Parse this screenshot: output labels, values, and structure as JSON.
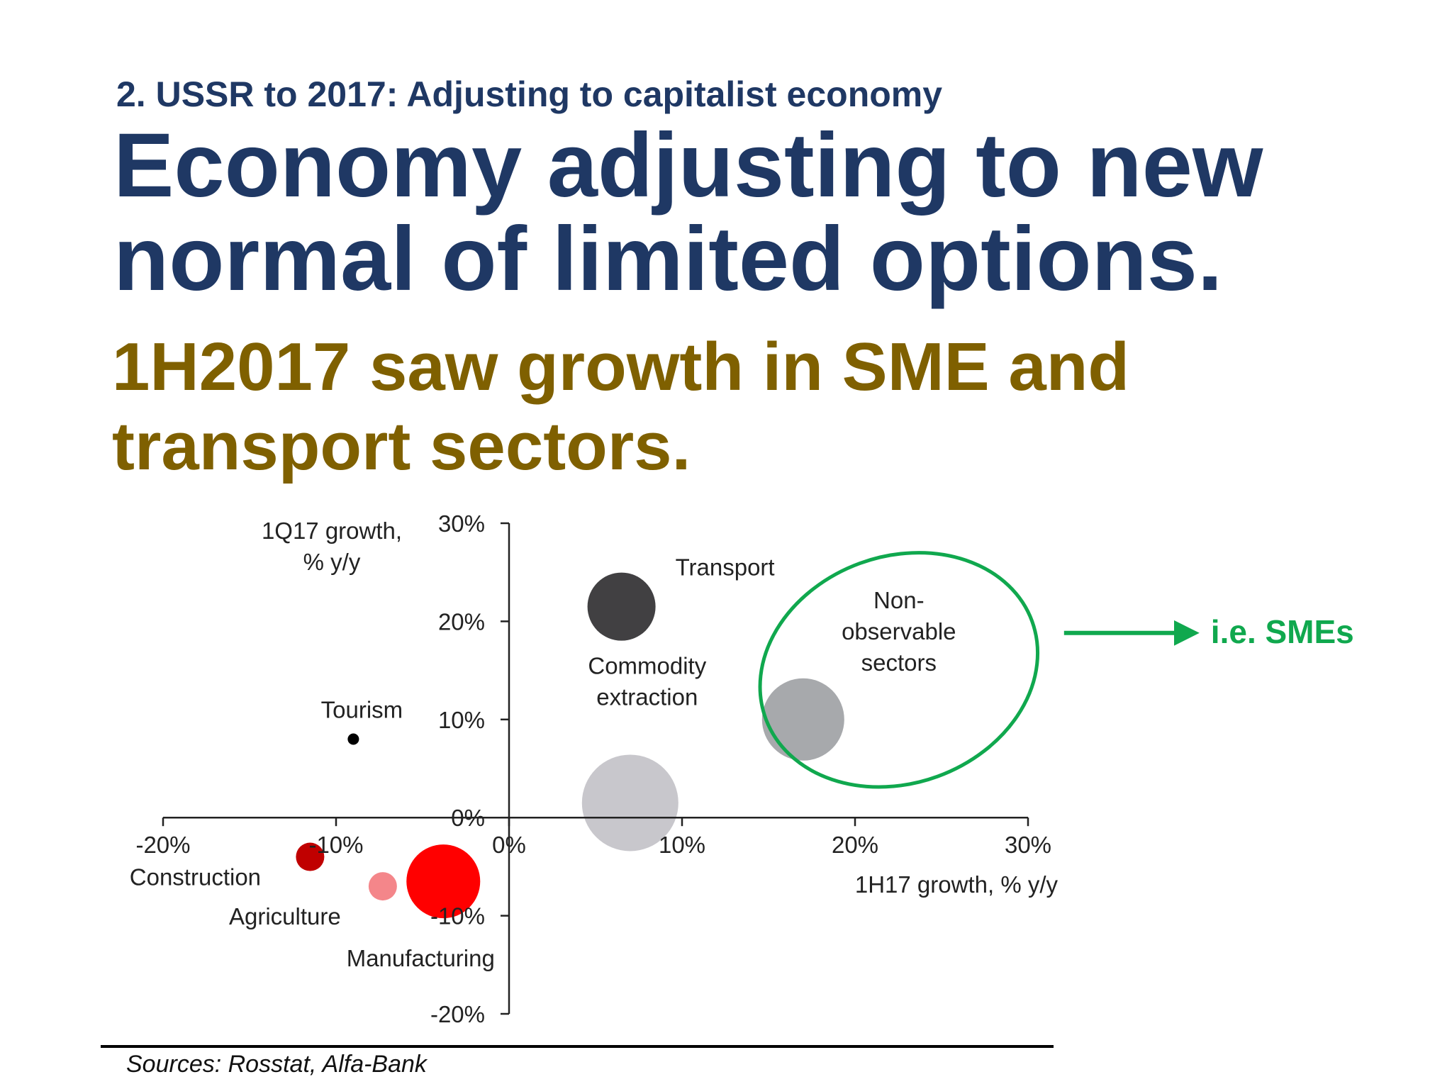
{
  "slide": {
    "kicker": "2. USSR to 2017: Adjusting to capitalist economy",
    "headline": "Economy adjusting to new normal of limited options.",
    "subhead": "1H2017 saw growth in SME and transport sectors.",
    "source": "Sources: Rosstat, Alfa-Bank"
  },
  "annotation": {
    "label": "i.e. SMEs",
    "color": "#10a84e"
  },
  "colors": {
    "headline": "#1f3864",
    "subhead": "#7f6000"
  },
  "chart_data": {
    "type": "scatter",
    "bubble": true,
    "xlabel": "1H17 growth, % y/y",
    "ylabel_lines": [
      "1Q17 growth,",
      "% y/y"
    ],
    "xlim": [
      -20,
      30
    ],
    "ylim": [
      -20,
      30
    ],
    "x_ticks": [
      -20,
      -10,
      0,
      10,
      20,
      30
    ],
    "y_ticks": [
      -20,
      -10,
      0,
      10,
      20,
      30
    ],
    "x_tick_labels": [
      "-20%",
      "-10%",
      "0%",
      "10%",
      "20%",
      "30%"
    ],
    "y_tick_labels": [
      "-20%",
      "-10%",
      "0%",
      "10%",
      "20%",
      "30%"
    ],
    "grid": false,
    "points": [
      {
        "name": "Transport",
        "label_lines": [
          "Transport"
        ],
        "x": 6.5,
        "y": 21.5,
        "size": 48,
        "color": "#414042"
      },
      {
        "name": "Non-observable sectors",
        "label_lines": [
          "Non-",
          "observable",
          "sectors"
        ],
        "x": 17,
        "y": 10,
        "size": 58,
        "color": "#a7a9ac"
      },
      {
        "name": "Commodity extraction",
        "label_lines": [
          "Commodity",
          "extraction"
        ],
        "x": 7,
        "y": 1.5,
        "size": 68,
        "color": "#c8c7cc"
      },
      {
        "name": "Tourism",
        "label_lines": [
          "Tourism"
        ],
        "x": -9,
        "y": 8,
        "size": 8,
        "color": "#000000"
      },
      {
        "name": "Construction",
        "label_lines": [
          "Construction"
        ],
        "x": -11.5,
        "y": -4,
        "size": 20,
        "color": "#c00000"
      },
      {
        "name": "Agriculture",
        "label_lines": [
          "Agriculture"
        ],
        "x": -7.3,
        "y": -7,
        "size": 20,
        "color": "#f4868a"
      },
      {
        "name": "Manufacturing",
        "label_lines": [
          "Manufacturing"
        ],
        "x": -3.8,
        "y": -6.5,
        "size": 52,
        "color": "#ff0000"
      }
    ],
    "highlight": {
      "target": "Non-observable sectors"
    }
  }
}
